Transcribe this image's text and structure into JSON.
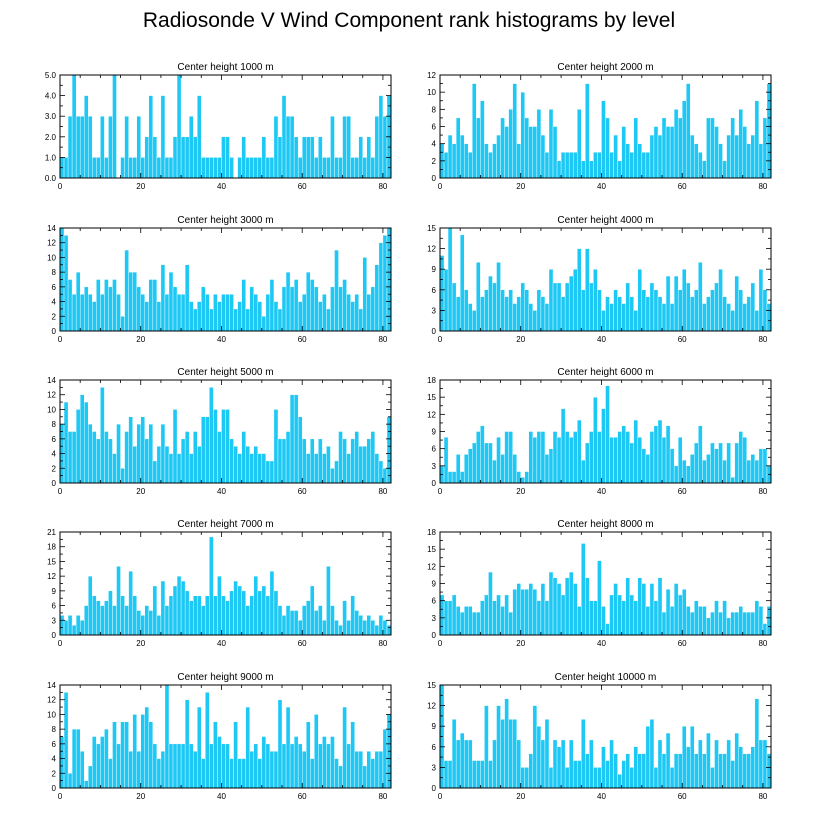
{
  "chart_data": {
    "title": "Radiosonde V Wind Component rank histograms by level",
    "type": "bar",
    "bin_count": 82,
    "xlim": [
      0,
      82
    ],
    "x_ticks": [
      0,
      20,
      40,
      60,
      80
    ],
    "colors": {
      "bar": "#1ec8f5",
      "frame": "#000000"
    },
    "panels": [
      {
        "title": "Center height 1000 m",
        "ylim": [
          0,
          5
        ],
        "y_ticks": [
          0,
          1,
          2,
          3,
          4,
          5
        ],
        "y_tick_labels": [
          "0.0",
          "1.0",
          "2.0",
          "3.0",
          "4.0",
          "5.0"
        ],
        "values": [
          1,
          1,
          3,
          5,
          3,
          3,
          4,
          3,
          1,
          1,
          3,
          1,
          3,
          5,
          0,
          1,
          3,
          1,
          1,
          3,
          1,
          2,
          4,
          2,
          1,
          4,
          1,
          1,
          2,
          5,
          2,
          2,
          3,
          2,
          4,
          1,
          1,
          1,
          1,
          1,
          2,
          2,
          1,
          0,
          1,
          2,
          1,
          1,
          1,
          1,
          2,
          1,
          1,
          3,
          2,
          4,
          3,
          3,
          2,
          1,
          2,
          2,
          2,
          1,
          2,
          1,
          1,
          3,
          1,
          1,
          3,
          3,
          1,
          1,
          2,
          1,
          2,
          1,
          3,
          4,
          3,
          4
        ]
      },
      {
        "title": "Center height 2000 m",
        "ylim": [
          0,
          12
        ],
        "y_ticks": [
          0,
          2,
          4,
          6,
          8,
          10,
          12
        ],
        "y_tick_labels": [
          "0",
          "2",
          "4",
          "6",
          "8",
          "10",
          "12"
        ],
        "values": [
          4,
          3,
          5,
          4,
          7,
          5,
          4,
          3,
          11,
          7,
          9,
          4,
          3,
          4,
          5,
          7,
          6,
          8,
          11,
          4,
          10,
          7,
          6,
          6,
          8,
          5,
          3,
          8,
          6,
          2,
          3,
          3,
          3,
          3,
          8,
          2,
          11,
          2,
          3,
          3,
          9,
          7,
          3,
          5,
          2,
          6,
          4,
          3,
          7,
          4,
          3,
          3,
          5,
          6,
          5,
          7,
          6,
          6,
          8,
          7,
          9,
          11,
          5,
          4,
          3,
          2,
          7,
          7,
          6,
          4,
          2,
          5,
          7,
          5,
          8,
          6,
          4,
          5,
          9,
          4,
          7,
          11
        ]
      },
      {
        "title": "Center height 3000 m",
        "ylim": [
          0,
          14
        ],
        "y_ticks": [
          0,
          2,
          4,
          6,
          8,
          10,
          12,
          14
        ],
        "y_tick_labels": [
          "0",
          "2",
          "4",
          "6",
          "8",
          "10",
          "12",
          "14"
        ],
        "values": [
          14,
          13,
          7,
          5,
          8,
          5,
          6,
          5,
          4,
          7,
          5,
          7,
          6,
          7,
          5,
          2,
          11,
          8,
          8,
          6,
          5,
          4,
          7,
          7,
          4,
          9,
          5,
          8,
          6,
          5,
          5,
          9,
          4,
          3,
          4,
          6,
          5,
          3,
          5,
          4,
          5,
          5,
          5,
          3,
          4,
          7,
          3,
          6,
          5,
          4,
          2,
          5,
          7,
          4,
          3,
          6,
          8,
          6,
          7,
          4,
          5,
          8,
          7,
          6,
          4,
          5,
          3,
          6,
          11,
          6,
          7,
          5,
          4,
          5,
          3,
          10,
          5,
          6,
          9,
          12,
          13,
          14
        ]
      },
      {
        "title": "Center height 4000 m",
        "ylim": [
          0,
          15
        ],
        "y_ticks": [
          0,
          3,
          6,
          9,
          12,
          15
        ],
        "y_tick_labels": [
          "0",
          "3",
          "6",
          "9",
          "12",
          "15"
        ],
        "values": [
          11,
          9,
          15,
          7,
          5,
          14,
          6,
          4,
          3,
          10,
          5,
          6,
          8,
          7,
          10,
          6,
          5,
          6,
          4,
          5,
          7,
          6,
          4,
          3,
          6,
          5,
          4,
          9,
          7,
          7,
          5,
          7,
          8,
          9,
          12,
          6,
          12,
          7,
          9,
          6,
          3,
          5,
          4,
          6,
          5,
          4,
          7,
          5,
          3,
          9,
          6,
          5,
          7,
          6,
          5,
          4,
          8,
          4,
          8,
          6,
          9,
          7,
          5,
          6,
          10,
          4,
          5,
          6,
          7,
          9,
          5,
          4,
          3,
          8,
          6,
          4,
          5,
          7,
          3,
          9,
          6,
          4
        ]
      },
      {
        "title": "Center height 5000 m",
        "ylim": [
          0,
          14
        ],
        "y_ticks": [
          0,
          2,
          4,
          6,
          8,
          10,
          12,
          14
        ],
        "y_tick_labels": [
          "0",
          "2",
          "4",
          "6",
          "8",
          "10",
          "12",
          "14"
        ],
        "values": [
          8,
          11,
          7,
          7,
          10,
          12,
          11,
          8,
          7,
          6,
          13,
          7,
          6,
          4,
          8,
          2,
          7,
          9,
          5,
          8,
          9,
          6,
          8,
          3,
          5,
          8,
          5,
          4,
          10,
          4,
          6,
          7,
          4,
          7,
          5,
          9,
          9,
          13,
          10,
          7,
          10,
          10,
          6,
          5,
          4,
          7,
          5,
          4,
          5,
          4,
          4,
          3,
          3,
          10,
          6,
          6,
          7,
          12,
          12,
          9,
          6,
          4,
          6,
          4,
          6,
          4,
          5,
          2,
          3,
          7,
          6,
          4,
          6,
          7,
          5,
          5,
          6,
          7,
          4,
          3,
          2,
          9
        ]
      },
      {
        "title": "Center height 6000 m",
        "ylim": [
          0,
          18
        ],
        "y_ticks": [
          0,
          3,
          6,
          9,
          12,
          15,
          18
        ],
        "y_tick_labels": [
          "0",
          "3",
          "6",
          "9",
          "12",
          "15",
          "18"
        ],
        "values": [
          3,
          8,
          2,
          2,
          5,
          2,
          5,
          6,
          7,
          9,
          10,
          7,
          7,
          4,
          8,
          5,
          9,
          9,
          5,
          2,
          1,
          2,
          9,
          8,
          9,
          9,
          5,
          6,
          9,
          8,
          13,
          9,
          8,
          9,
          11,
          4,
          7,
          9,
          15,
          9,
          13,
          17,
          8,
          8,
          9,
          10,
          9,
          7,
          11,
          8,
          6,
          5,
          9,
          10,
          11,
          8,
          10,
          6,
          3,
          8,
          4,
          3,
          5,
          7,
          10,
          4,
          5,
          7,
          6,
          7,
          4,
          7,
          1,
          7,
          9,
          8,
          4,
          5,
          4,
          6,
          6,
          3
        ]
      },
      {
        "title": "Center height 7000 m",
        "ylim": [
          0,
          21
        ],
        "y_ticks": [
          0,
          3,
          6,
          9,
          12,
          15,
          18,
          21
        ],
        "y_tick_labels": [
          "0",
          "3",
          "6",
          "9",
          "12",
          "15",
          "18",
          "21"
        ],
        "values": [
          4,
          3,
          4,
          2,
          4,
          3,
          6,
          12,
          8,
          7,
          6,
          7,
          9,
          6,
          14,
          8,
          6,
          13,
          8,
          5,
          4,
          6,
          5,
          10,
          4,
          11,
          6,
          8,
          10,
          12,
          11,
          9,
          7,
          8,
          8,
          6,
          8,
          20,
          8,
          12,
          8,
          7,
          9,
          11,
          10,
          9,
          6,
          8,
          12,
          9,
          10,
          8,
          13,
          9,
          6,
          4,
          6,
          5,
          5,
          3,
          6,
          7,
          10,
          5,
          6,
          3,
          14,
          6,
          3,
          2,
          7,
          3,
          8,
          5,
          4,
          3,
          4,
          3,
          2,
          4,
          3,
          2
        ]
      },
      {
        "title": "Center height 8000 m",
        "ylim": [
          0,
          18
        ],
        "y_ticks": [
          0,
          3,
          6,
          9,
          12,
          15,
          18
        ],
        "y_tick_labels": [
          "0",
          "3",
          "6",
          "9",
          "12",
          "15",
          "18"
        ],
        "values": [
          7,
          6,
          6,
          7,
          5,
          4,
          5,
          5,
          4,
          4,
          6,
          7,
          11,
          6,
          7,
          5,
          7,
          4,
          8,
          9,
          8,
          8,
          9,
          8,
          6,
          9,
          6,
          11,
          10,
          9,
          7,
          10,
          11,
          9,
          5,
          16,
          10,
          6,
          6,
          13,
          5,
          2,
          7,
          9,
          7,
          6,
          10,
          7,
          6,
          10,
          9,
          5,
          9,
          6,
          10,
          4,
          8,
          5,
          9,
          7,
          8,
          5,
          4,
          6,
          5,
          5,
          3,
          4,
          6,
          4,
          6,
          3,
          4,
          4,
          5,
          4,
          4,
          4,
          6,
          5,
          2,
          5
        ]
      },
      {
        "title": "Center height 9000 m",
        "ylim": [
          0,
          14
        ],
        "y_ticks": [
          0,
          2,
          4,
          6,
          8,
          10,
          12,
          14
        ],
        "y_tick_labels": [
          "0",
          "2",
          "4",
          "6",
          "8",
          "10",
          "12",
          "14"
        ],
        "values": [
          7,
          13,
          2,
          8,
          8,
          5,
          1,
          3,
          7,
          6,
          7,
          8,
          4,
          9,
          6,
          9,
          9,
          5,
          10,
          5,
          10,
          11,
          9,
          6,
          4,
          5,
          14,
          6,
          6,
          6,
          6,
          12,
          6,
          5,
          11,
          4,
          13,
          6,
          9,
          7,
          6,
          6,
          4,
          9,
          4,
          4,
          11,
          5,
          6,
          4,
          7,
          6,
          5,
          5,
          12,
          6,
          11,
          6,
          7,
          6,
          5,
          9,
          4,
          10,
          6,
          7,
          6,
          7,
          4,
          3,
          11,
          6,
          9,
          5,
          5,
          3,
          5,
          4,
          5,
          5,
          8,
          10
        ]
      },
      {
        "title": "Center height 10000 m",
        "ylim": [
          0,
          15
        ],
        "y_ticks": [
          0,
          3,
          6,
          9,
          12,
          15
        ],
        "y_tick_labels": [
          "0",
          "3",
          "6",
          "9",
          "12",
          "15"
        ],
        "values": [
          15,
          4,
          4,
          10,
          7,
          8,
          7,
          7,
          4,
          4,
          4,
          12,
          4,
          7,
          12,
          10,
          13,
          10,
          10,
          7,
          3,
          3,
          5,
          12,
          9,
          7,
          10,
          3,
          7,
          6,
          7,
          3,
          7,
          4,
          4,
          10,
          5,
          7,
          3,
          3,
          6,
          4,
          7,
          5,
          2,
          4,
          5,
          3,
          6,
          5,
          5,
          9,
          10,
          3,
          7,
          5,
          8,
          3,
          5,
          5,
          9,
          6,
          9,
          5,
          7,
          5,
          8,
          3,
          7,
          5,
          5,
          7,
          4,
          8,
          6,
          5,
          5,
          6,
          13,
          7,
          7,
          5
        ]
      }
    ]
  }
}
